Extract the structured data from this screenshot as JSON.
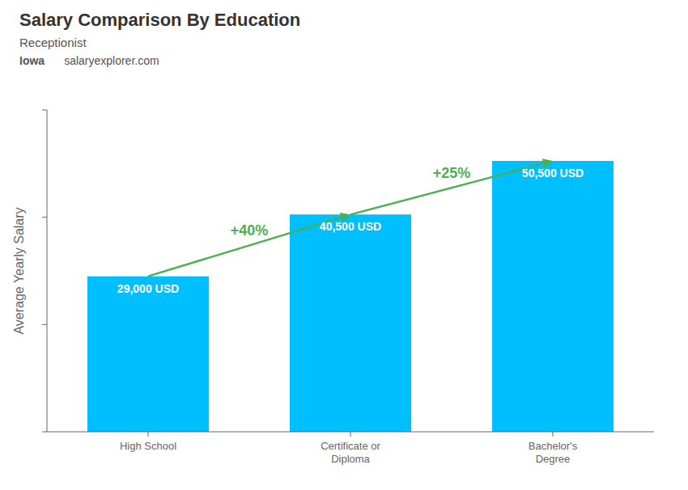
{
  "chart_data": {
    "type": "bar",
    "title": "Salary Comparison By Education",
    "subtitle": "Receptionist",
    "annotations": [
      {
        "text": "Iowa"
      },
      {
        "text": "salaryexplorer.com"
      },
      {
        "text": "+40%",
        "from": "High School",
        "to": "Certificate or\nDiploma"
      },
      {
        "text": "+25%",
        "from": "Certificate or\nDiploma",
        "to": "Bachelor's\nDegree"
      }
    ],
    "y_label": "Average Yearly Salary",
    "categories": [
      "High School",
      "Certificate or\nDiploma",
      "Bachelor's\nDegree"
    ],
    "values": [
      29000,
      40500,
      50500
    ],
    "value_labels": [
      "29,000 USD",
      "40,500 USD",
      "50,500 USD"
    ],
    "data_labels": true,
    "color": "#00bfff",
    "ylim": [
      0,
      60000
    ],
    "yticks": [
      0,
      20000,
      40000,
      60000
    ],
    "tick_labels": "x",
    "grid": false
  }
}
